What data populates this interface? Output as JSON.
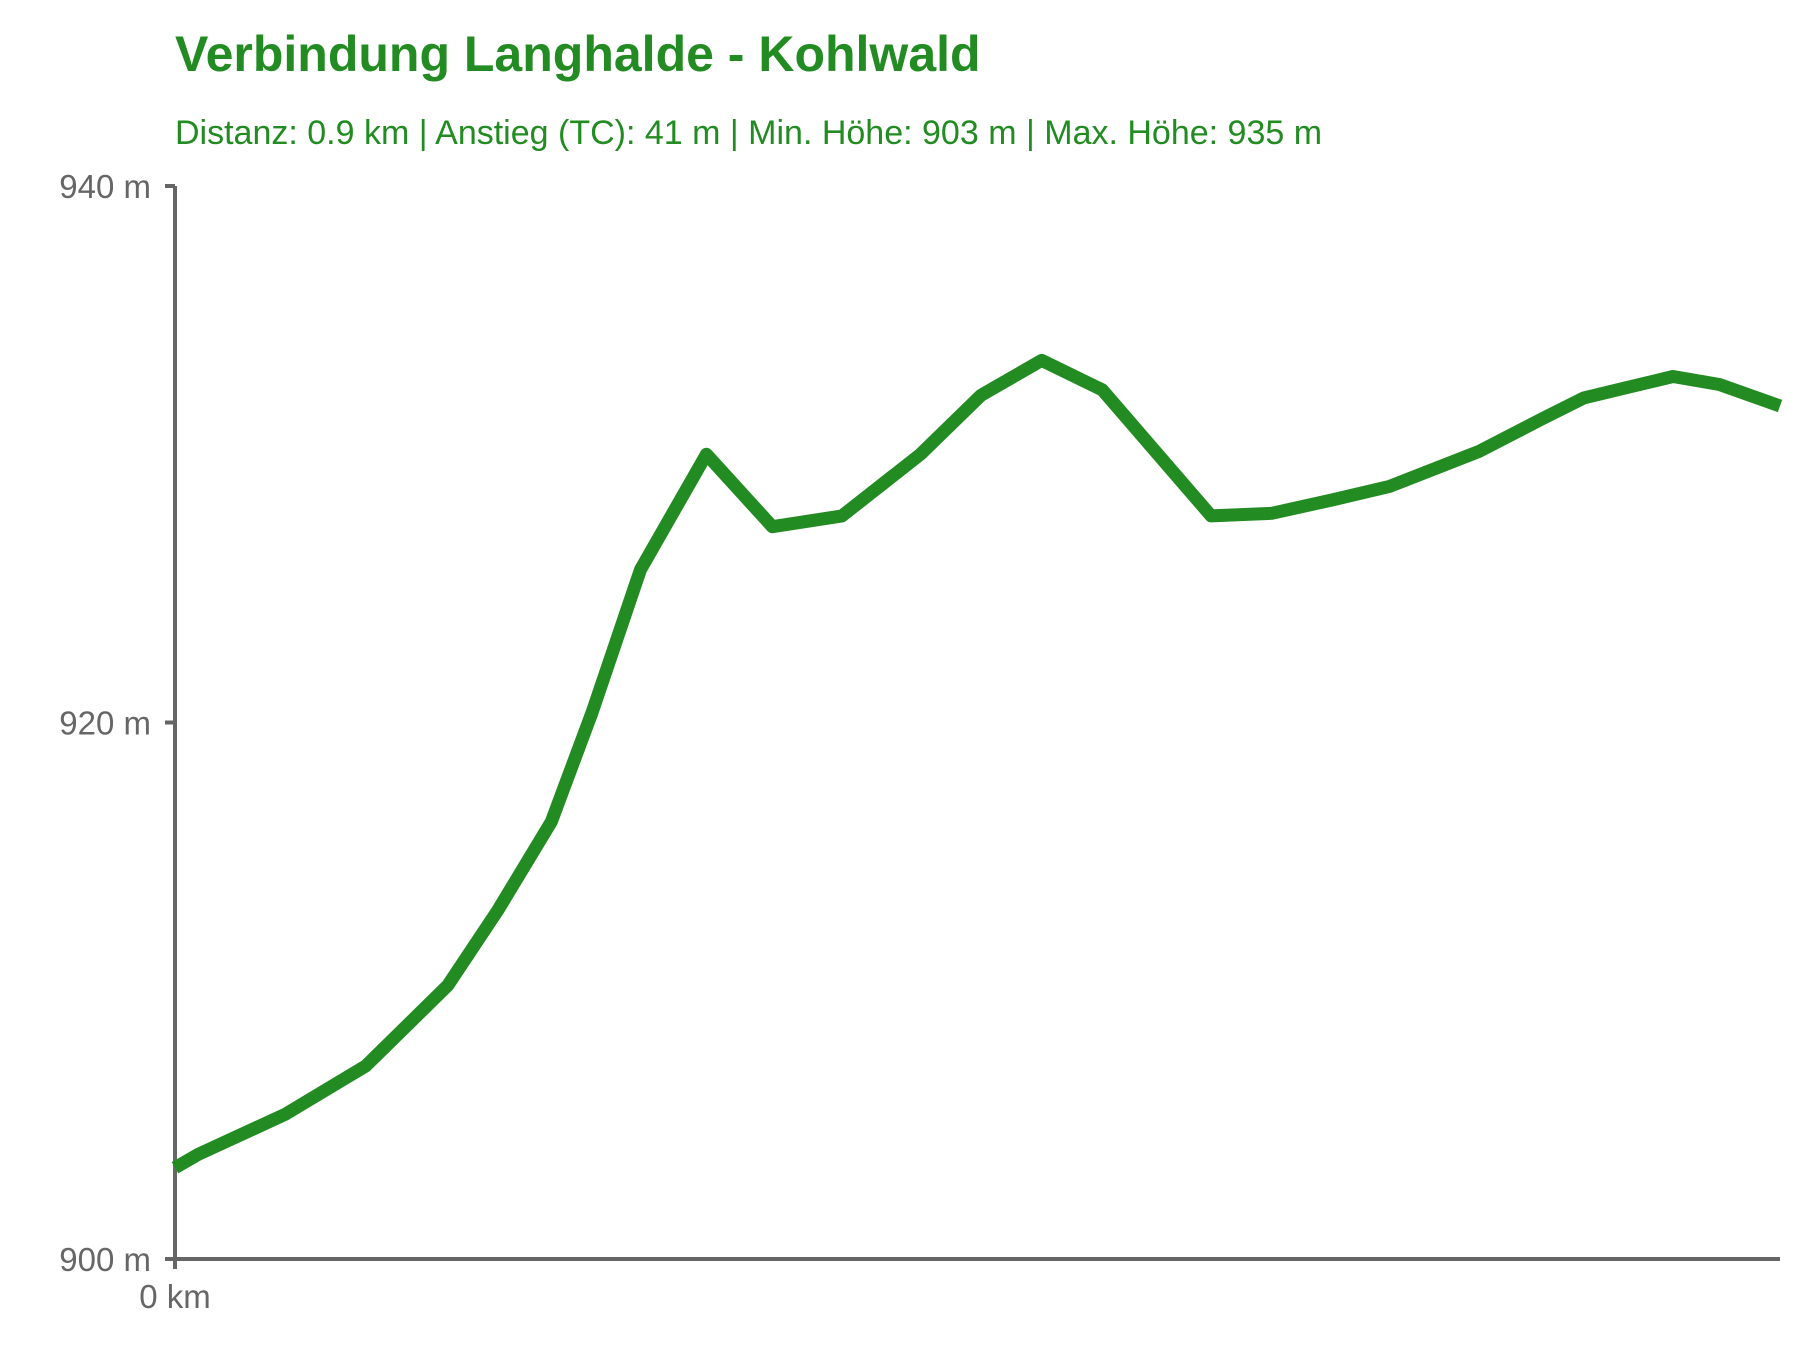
{
  "colors": {
    "accent": "#228B22",
    "axis": "#666666",
    "text_muted": "#666666",
    "background": "#ffffff"
  },
  "chart_data": {
    "type": "line",
    "title": "Verbindung Langhalde - Kohlwald",
    "subtitle": "Distanz: 0.9 km | Anstieg (TC): 41 m | Min. Höhe: 903 m | Max. Höhe: 935 m",
    "xlabel": "",
    "ylabel": "",
    "xlim": [
      0,
      0.9
    ],
    "ylim": [
      900,
      940
    ],
    "y_ticks": [
      {
        "value": 900,
        "label": "900 m"
      },
      {
        "value": 920,
        "label": "920 m"
      },
      {
        "value": 940,
        "label": "940 m"
      }
    ],
    "x_ticks": [
      {
        "value": 0,
        "label": "0 km"
      }
    ],
    "grid": false,
    "legend": "none",
    "x": [
      0.0,
      0.013,
      0.062,
      0.107,
      0.153,
      0.181,
      0.211,
      0.234,
      0.261,
      0.298,
      0.335,
      0.374,
      0.418,
      0.452,
      0.486,
      0.52,
      0.581,
      0.615,
      0.649,
      0.681,
      0.731,
      0.766,
      0.79,
      0.815,
      0.84,
      0.866,
      0.9
    ],
    "y": [
      903.4,
      903.9,
      905.4,
      907.2,
      910.2,
      913.0,
      916.3,
      920.4,
      925.7,
      930.0,
      927.3,
      927.7,
      930.0,
      932.2,
      933.5,
      932.4,
      927.7,
      927.8,
      928.3,
      928.8,
      930.1,
      931.3,
      932.1,
      932.5,
      932.9,
      932.6,
      931.8
    ]
  }
}
